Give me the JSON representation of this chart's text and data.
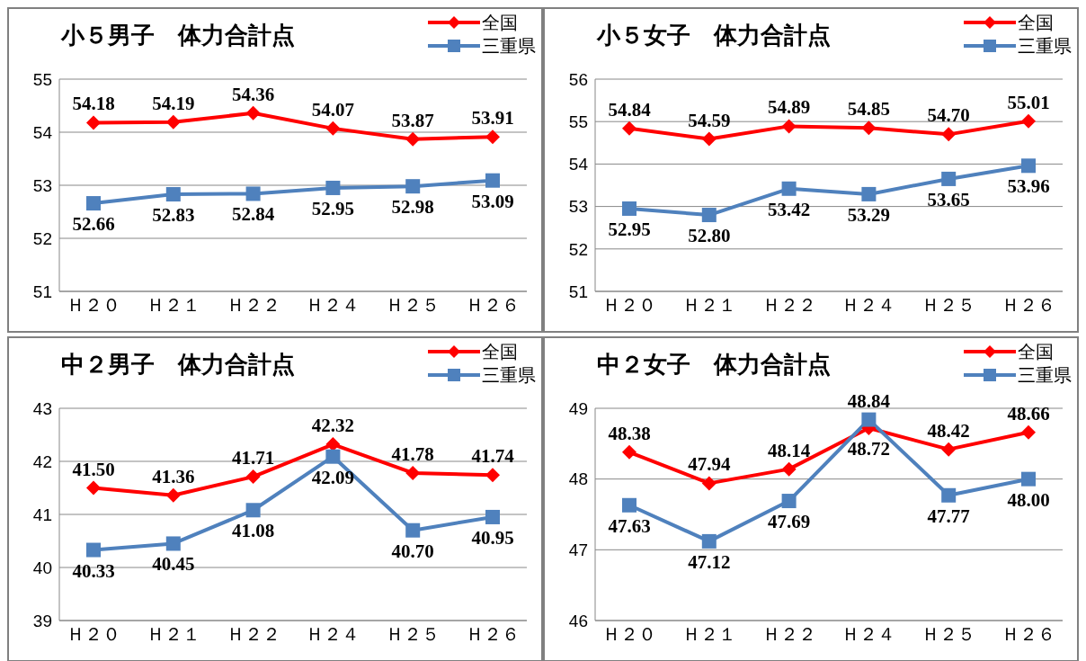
{
  "chart_data": [
    {
      "type": "line",
      "title": "小５男子　体力合計点",
      "categories": [
        "Ｈ２０",
        "Ｈ２１",
        "Ｈ２２",
        "Ｈ２４",
        "Ｈ２５",
        "Ｈ２６"
      ],
      "series": [
        {
          "name": "全国",
          "color": "#ff0000",
          "marker": "diamond",
          "values": [
            54.18,
            54.19,
            54.36,
            54.07,
            53.87,
            53.91
          ],
          "value_labels": [
            "54.18",
            "54.19",
            "54.36",
            "54.07",
            "53.87",
            "53.91"
          ]
        },
        {
          "name": "三重県",
          "color": "#4f81bd",
          "marker": "square",
          "values": [
            52.66,
            52.83,
            52.84,
            52.95,
            52.98,
            53.09
          ],
          "value_labels": [
            "52.66",
            "52.83",
            "52.84",
            "52.95",
            "52.98",
            "53.09"
          ]
        }
      ],
      "ylim": [
        51,
        55
      ],
      "yticks": [
        51,
        52,
        53,
        54,
        55
      ],
      "grid": "y",
      "legend": "top right",
      "line_style": "solid"
    },
    {
      "type": "line",
      "title": "小５女子　体力合計点",
      "categories": [
        "Ｈ２０",
        "Ｈ２１",
        "Ｈ２２",
        "Ｈ２４",
        "Ｈ２５",
        "Ｈ２６"
      ],
      "series": [
        {
          "name": "全国",
          "color": "#ff0000",
          "marker": "diamond",
          "values": [
            54.84,
            54.59,
            54.89,
            54.85,
            54.7,
            55.01
          ],
          "value_labels": [
            "54.84",
            "54.59",
            "54.89",
            "54.85",
            "54.70",
            "55.01"
          ]
        },
        {
          "name": "三重県",
          "color": "#4f81bd",
          "marker": "square",
          "values": [
            52.95,
            52.8,
            53.42,
            53.29,
            53.65,
            53.96
          ],
          "value_labels": [
            "52.95",
            "52.80",
            "53.42",
            "53.29",
            "53.65",
            "53.96"
          ]
        }
      ],
      "ylim": [
        51,
        56
      ],
      "yticks": [
        51,
        52,
        53,
        54,
        55,
        56
      ],
      "grid": "y",
      "legend": "top right",
      "line_style": "solid"
    },
    {
      "type": "line",
      "title": "中２男子　体力合計点",
      "categories": [
        "Ｈ２０",
        "Ｈ２１",
        "Ｈ２２",
        "Ｈ２４",
        "Ｈ２５",
        "Ｈ２６"
      ],
      "series": [
        {
          "name": "全国",
          "color": "#ff0000",
          "marker": "diamond",
          "values": [
            41.5,
            41.36,
            41.71,
            42.32,
            41.78,
            41.74
          ],
          "value_labels": [
            "41.50",
            "41.36",
            "41.71",
            "42.32",
            "41.78",
            "41.74"
          ]
        },
        {
          "name": "三重県",
          "color": "#4f81bd",
          "marker": "square",
          "values": [
            40.33,
            40.45,
            41.08,
            42.09,
            40.7,
            40.95
          ],
          "value_labels": [
            "40.33",
            "40.45",
            "41.08",
            "42.09",
            "40.70",
            "40.95"
          ]
        }
      ],
      "ylim": [
        39,
        43
      ],
      "yticks": [
        39,
        40,
        41,
        42,
        43
      ],
      "grid": "y",
      "legend": "top right",
      "line_style": "solid"
    },
    {
      "type": "line",
      "title": "中２女子　体力合計点",
      "categories": [
        "Ｈ２０",
        "Ｈ２１",
        "Ｈ２２",
        "Ｈ２４",
        "Ｈ２５",
        "Ｈ２６"
      ],
      "series": [
        {
          "name": "全国",
          "color": "#ff0000",
          "marker": "diamond",
          "values": [
            48.38,
            47.94,
            48.14,
            48.72,
            48.42,
            48.66
          ],
          "value_labels": [
            "48.38",
            "47.94",
            "48.14",
            "48.72",
            "48.42",
            "48.66"
          ]
        },
        {
          "name": "三重県",
          "color": "#4f81bd",
          "marker": "square",
          "values": [
            47.63,
            47.12,
            47.69,
            48.84,
            47.77,
            48.0
          ],
          "value_labels": [
            "47.63",
            "47.12",
            "47.69",
            "48.84",
            "47.77",
            "48.00"
          ]
        }
      ],
      "ylim": [
        46,
        49
      ],
      "yticks": [
        46,
        47,
        48,
        49
      ],
      "grid": "y",
      "legend": "top right",
      "line_style": "solid"
    }
  ]
}
